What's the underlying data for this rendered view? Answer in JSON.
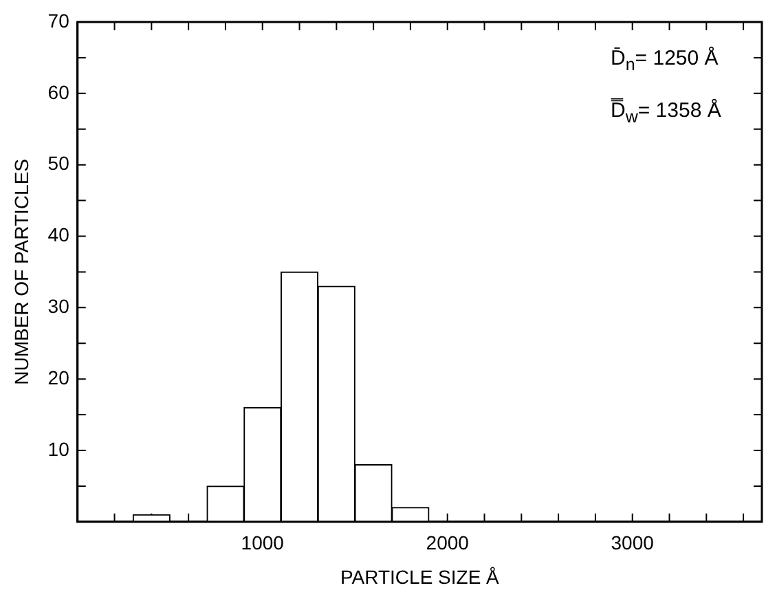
{
  "chart_data": {
    "type": "histogram",
    "xlabel": "PARTICLE SIZE Å",
    "ylabel": "NUMBER OF PARTICLES",
    "bins": [
      300,
      500,
      700,
      900,
      1100,
      1300,
      1500,
      1700,
      1900
    ],
    "values": [
      1,
      0,
      5,
      16,
      35,
      33,
      8,
      2
    ],
    "color": "#ffffff",
    "xlim": [
      0,
      3700
    ],
    "xticks": [
      {
        "value": 200,
        "label": null
      },
      {
        "value": 400,
        "label": null
      },
      {
        "value": 600,
        "label": null
      },
      {
        "value": 800,
        "label": null
      },
      1000,
      {
        "value": 1200,
        "label": null
      },
      {
        "value": 1400,
        "label": null
      },
      {
        "value": 1600,
        "label": null
      },
      {
        "value": 1800,
        "label": null
      },
      2000,
      {
        "value": 2200,
        "label": null
      },
      {
        "value": 2400,
        "label": null
      },
      {
        "value": 2600,
        "label": null
      },
      {
        "value": 2800,
        "label": null
      },
      3000,
      {
        "value": 3200,
        "label": null
      },
      {
        "value": 3400,
        "label": null
      },
      {
        "value": 3600,
        "label": null
      }
    ],
    "ylim": [
      0,
      70
    ],
    "yticks": [
      {
        "value": 5,
        "label": null
      },
      10,
      {
        "value": 15,
        "label": null
      },
      20,
      {
        "value": 25,
        "label": null
      },
      30,
      {
        "value": 35,
        "label": null
      },
      40,
      {
        "value": 45,
        "label": null
      },
      50,
      {
        "value": 55,
        "label": null
      },
      60,
      {
        "value": 65,
        "label": null
      },
      70
    ],
    "annotations": [
      "D̄$_{n}$= 1250 Å",
      "D̿$_{w}$= 1358 Å"
    ],
    "grid": false,
    "legend": false
  }
}
